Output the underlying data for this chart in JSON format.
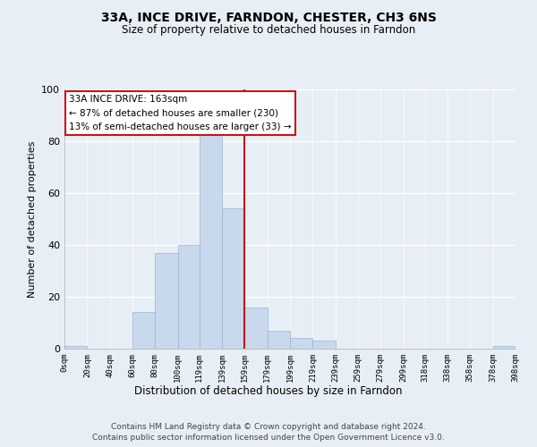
{
  "title": "33A, INCE DRIVE, FARNDON, CHESTER, CH3 6NS",
  "subtitle": "Size of property relative to detached houses in Farndon",
  "xlabel": "Distribution of detached houses by size in Farndon",
  "ylabel": "Number of detached properties",
  "footer_line1": "Contains HM Land Registry data © Crown copyright and database right 2024.",
  "footer_line2": "Contains public sector information licensed under the Open Government Licence v3.0.",
  "bar_color": "#c8d9ed",
  "bar_edge_color": "#9ab4d0",
  "background_color": "#e8eef5",
  "plot_bg_color": "#e8eef5",
  "grid_color": "#ffffff",
  "vline_color": "#cc1111",
  "vline_x": 159,
  "annotation_title": "33A INCE DRIVE: 163sqm",
  "annotation_line1": "← 87% of detached houses are smaller (230)",
  "annotation_line2": "13% of semi-detached houses are larger (33) →",
  "bin_edges": [
    0,
    20,
    40,
    60,
    80,
    100,
    119,
    139,
    159,
    179,
    199,
    219,
    239,
    259,
    279,
    299,
    318,
    338,
    358,
    378,
    398
  ],
  "bin_labels": [
    "0sqm",
    "20sqm",
    "40sqm",
    "60sqm",
    "80sqm",
    "100sqm",
    "119sqm",
    "139sqm",
    "159sqm",
    "179sqm",
    "199sqm",
    "219sqm",
    "239sqm",
    "259sqm",
    "279sqm",
    "299sqm",
    "318sqm",
    "338sqm",
    "358sqm",
    "378sqm",
    "398sqm"
  ],
  "counts": [
    1,
    0,
    0,
    14,
    37,
    40,
    84,
    54,
    16,
    7,
    4,
    3,
    0,
    0,
    0,
    0,
    0,
    0,
    0,
    1
  ],
  "ylim": [
    0,
    100
  ],
  "yticks": [
    0,
    20,
    40,
    60,
    80,
    100
  ]
}
